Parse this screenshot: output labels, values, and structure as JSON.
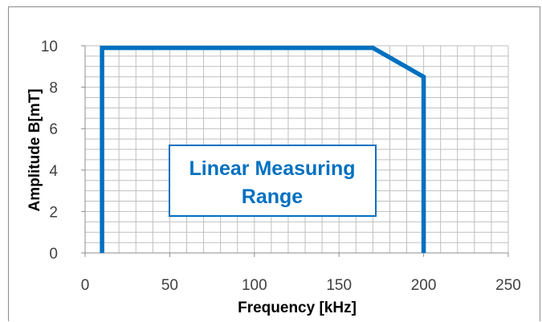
{
  "chart_data": {
    "type": "line",
    "title": "",
    "xlabel": "Frequency [kHz]",
    "ylabel": "Amplitude B[mT]",
    "xlim": [
      0,
      250
    ],
    "ylim": [
      0,
      10
    ],
    "x_major_ticks": [
      0,
      50,
      100,
      150,
      200,
      250
    ],
    "y_major_ticks": [
      0,
      2,
      4,
      6,
      8,
      10
    ],
    "x_minor_step": 10,
    "y_minor_step": 0.5,
    "grid": true,
    "legend": "none",
    "series": [
      {
        "x": [
          10,
          10,
          170,
          200,
          200
        ],
        "y": [
          0,
          9.9,
          9.9,
          8.5,
          0
        ]
      }
    ],
    "annotation": {
      "lines": [
        "Linear Measuring",
        "Range"
      ]
    },
    "colors": {
      "series": "#0070c0",
      "grid": "#bfbfbf",
      "annotation_text": "#0070c0",
      "annotation_border": "#0070c0"
    }
  }
}
